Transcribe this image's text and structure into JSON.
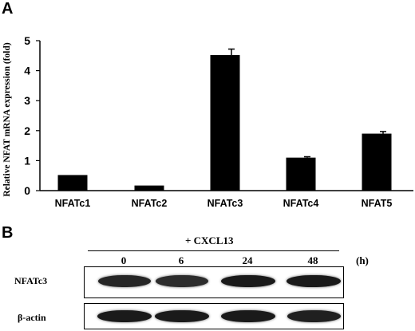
{
  "panel_a": {
    "label": "A",
    "chart_data": {
      "type": "bar",
      "categories": [
        "NFATc1",
        "NFATc2",
        "NFATc3",
        "NFATc4",
        "NFAT5"
      ],
      "values": [
        0.52,
        0.17,
        4.52,
        1.1,
        1.9
      ],
      "errors": [
        0.0,
        0.0,
        0.2,
        0.03,
        0.07
      ],
      "ylabel": "Relative NFAT mRNA expression (fold)",
      "xlabel": "",
      "ylim": [
        0,
        5
      ],
      "yticks": [
        0,
        1,
        2,
        3,
        4,
        5
      ],
      "bar_color": "#000000",
      "grid": false
    }
  },
  "panel_b": {
    "label": "B",
    "treatment": "+ CXCL13",
    "timepoints": [
      "0",
      "6",
      "24",
      "48"
    ],
    "unit": "(h)",
    "rows": [
      {
        "label": "NFATc3",
        "intensities": [
          0.85,
          0.8,
          0.95,
          0.95
        ]
      },
      {
        "label": "β-actin",
        "intensities": [
          0.95,
          0.95,
          0.95,
          0.9
        ]
      }
    ]
  }
}
